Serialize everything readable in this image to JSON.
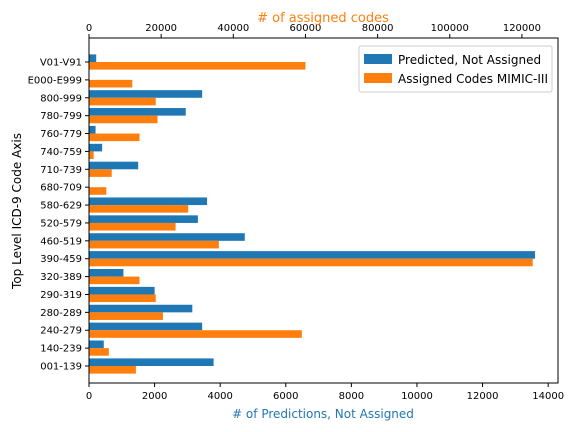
{
  "chart_data": {
    "type": "bar",
    "orientation": "horizontal",
    "title": "",
    "ylabel": "Top Level ICD-9 Code Axis",
    "xlabel_bottom": "# of Predictions, Not Assigned",
    "xlabel_top": "# of assigned codes",
    "bottom_xlim": [
      0,
      14300
    ],
    "top_xlim": [
      0,
      130000
    ],
    "bottom_ticks": [
      0,
      2000,
      4000,
      6000,
      8000,
      10000,
      12000,
      14000
    ],
    "top_ticks": [
      0,
      20000,
      40000,
      60000,
      80000,
      100000,
      120000
    ],
    "categories": [
      "001-139",
      "140-239",
      "240-279",
      "280-289",
      "290-319",
      "320-389",
      "390-459",
      "460-519",
      "520-579",
      "580-629",
      "680-709",
      "710-739",
      "740-759",
      "760-779",
      "780-799",
      "800-999",
      "E000-E999",
      "V01-V91"
    ],
    "series": [
      {
        "name": "Predicted, Not Assigned",
        "axis": "bottom",
        "color": "#1f77b4",
        "values": [
          3800,
          450,
          3450,
          3150,
          2000,
          1050,
          13600,
          4750,
          3320,
          3600,
          0,
          1500,
          400,
          200,
          2950,
          3450,
          0,
          220
        ]
      },
      {
        "name": "Assigned Codes MIMIC-III",
        "axis": "top",
        "color": "#ff7f0e",
        "values": [
          13000,
          5500,
          59000,
          20500,
          18500,
          14000,
          123000,
          36000,
          24000,
          27500,
          4800,
          6300,
          1300,
          14000,
          19000,
          18500,
          12000,
          60000
        ]
      }
    ],
    "legend_position": "top-right",
    "grid": false
  }
}
